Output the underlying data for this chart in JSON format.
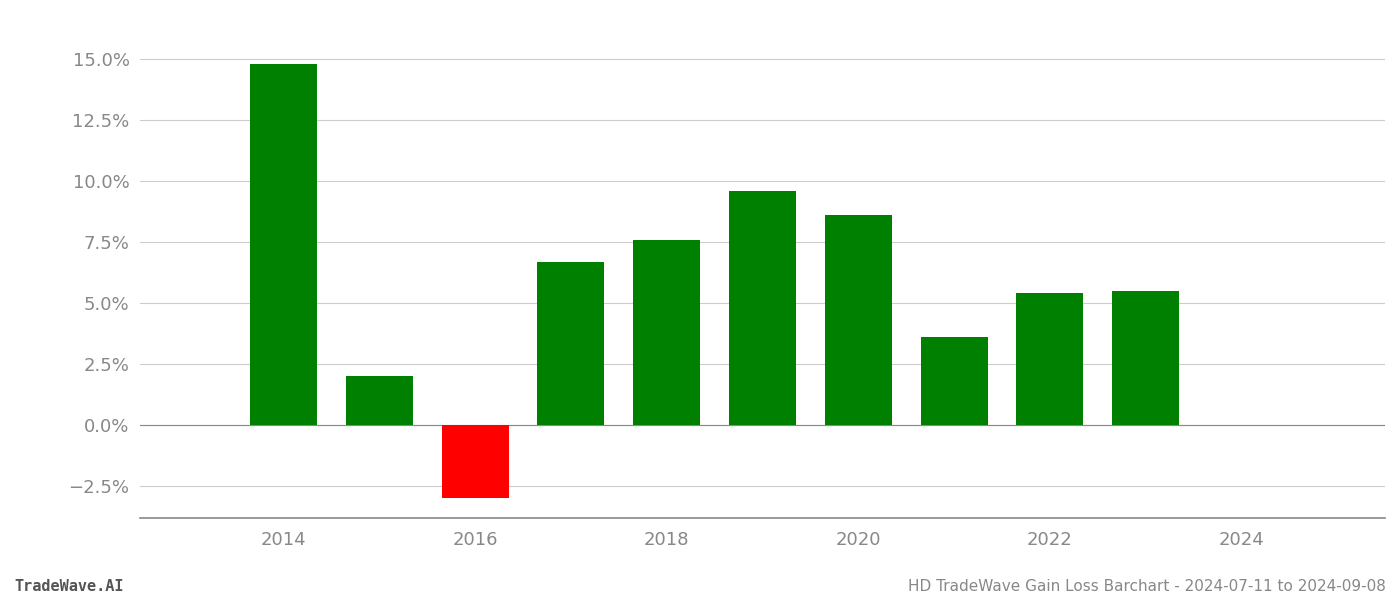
{
  "years": [
    2014,
    2015,
    2016,
    2017,
    2018,
    2019,
    2020,
    2021,
    2022,
    2023
  ],
  "values": [
    0.148,
    0.02,
    -0.03,
    0.067,
    0.076,
    0.096,
    0.086,
    0.036,
    0.054,
    0.055
  ],
  "colors": [
    "#008000",
    "#008000",
    "#ff0000",
    "#008000",
    "#008000",
    "#008000",
    "#008000",
    "#008000",
    "#008000",
    "#008000"
  ],
  "xlim": [
    2012.5,
    2025.5
  ],
  "ylim": [
    -0.038,
    0.168
  ],
  "yticks": [
    -0.025,
    0.0,
    0.025,
    0.05,
    0.075,
    0.1,
    0.125,
    0.15
  ],
  "xticks": [
    2014,
    2016,
    2018,
    2020,
    2022,
    2024
  ],
  "title": "HD TradeWave Gain Loss Barchart - 2024-07-11 to 2024-09-08",
  "footer_left": "TradeWave.AI",
  "background_color": "#ffffff",
  "grid_color": "#cccccc",
  "bar_width": 0.7,
  "tick_fontsize": 13,
  "footer_fontsize": 11
}
